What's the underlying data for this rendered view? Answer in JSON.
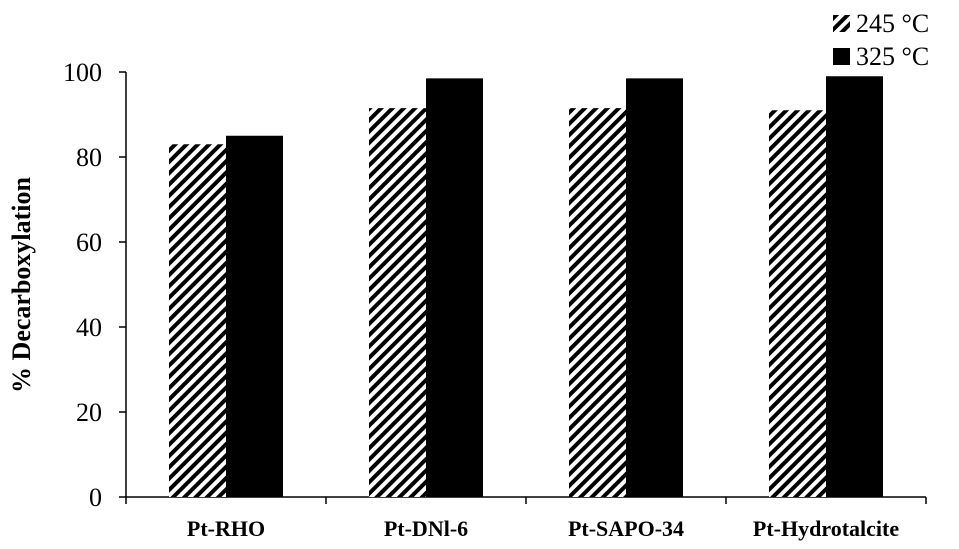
{
  "chart_data": {
    "type": "bar",
    "categories": [
      "Pt-RHO",
      "Pt-DNl-6",
      "Pt-SAPO-34",
      "Pt-Hydrotalcite"
    ],
    "series": [
      {
        "name": "245 °C",
        "values": [
          83,
          91.5,
          91.5,
          91
        ],
        "color": "#000000",
        "pattern": "diagonal-hatch"
      },
      {
        "name": "325 °C",
        "values": [
          85,
          98.5,
          98.5,
          99
        ],
        "color": "#000000",
        "pattern": "solid"
      }
    ],
    "title": "",
    "xlabel": "",
    "ylabel": "% Decarboxylation",
    "ylim": [
      0,
      100
    ],
    "yticks": [
      0,
      20,
      40,
      60,
      80,
      100
    ],
    "grid": false,
    "legend_position": "top-right"
  }
}
